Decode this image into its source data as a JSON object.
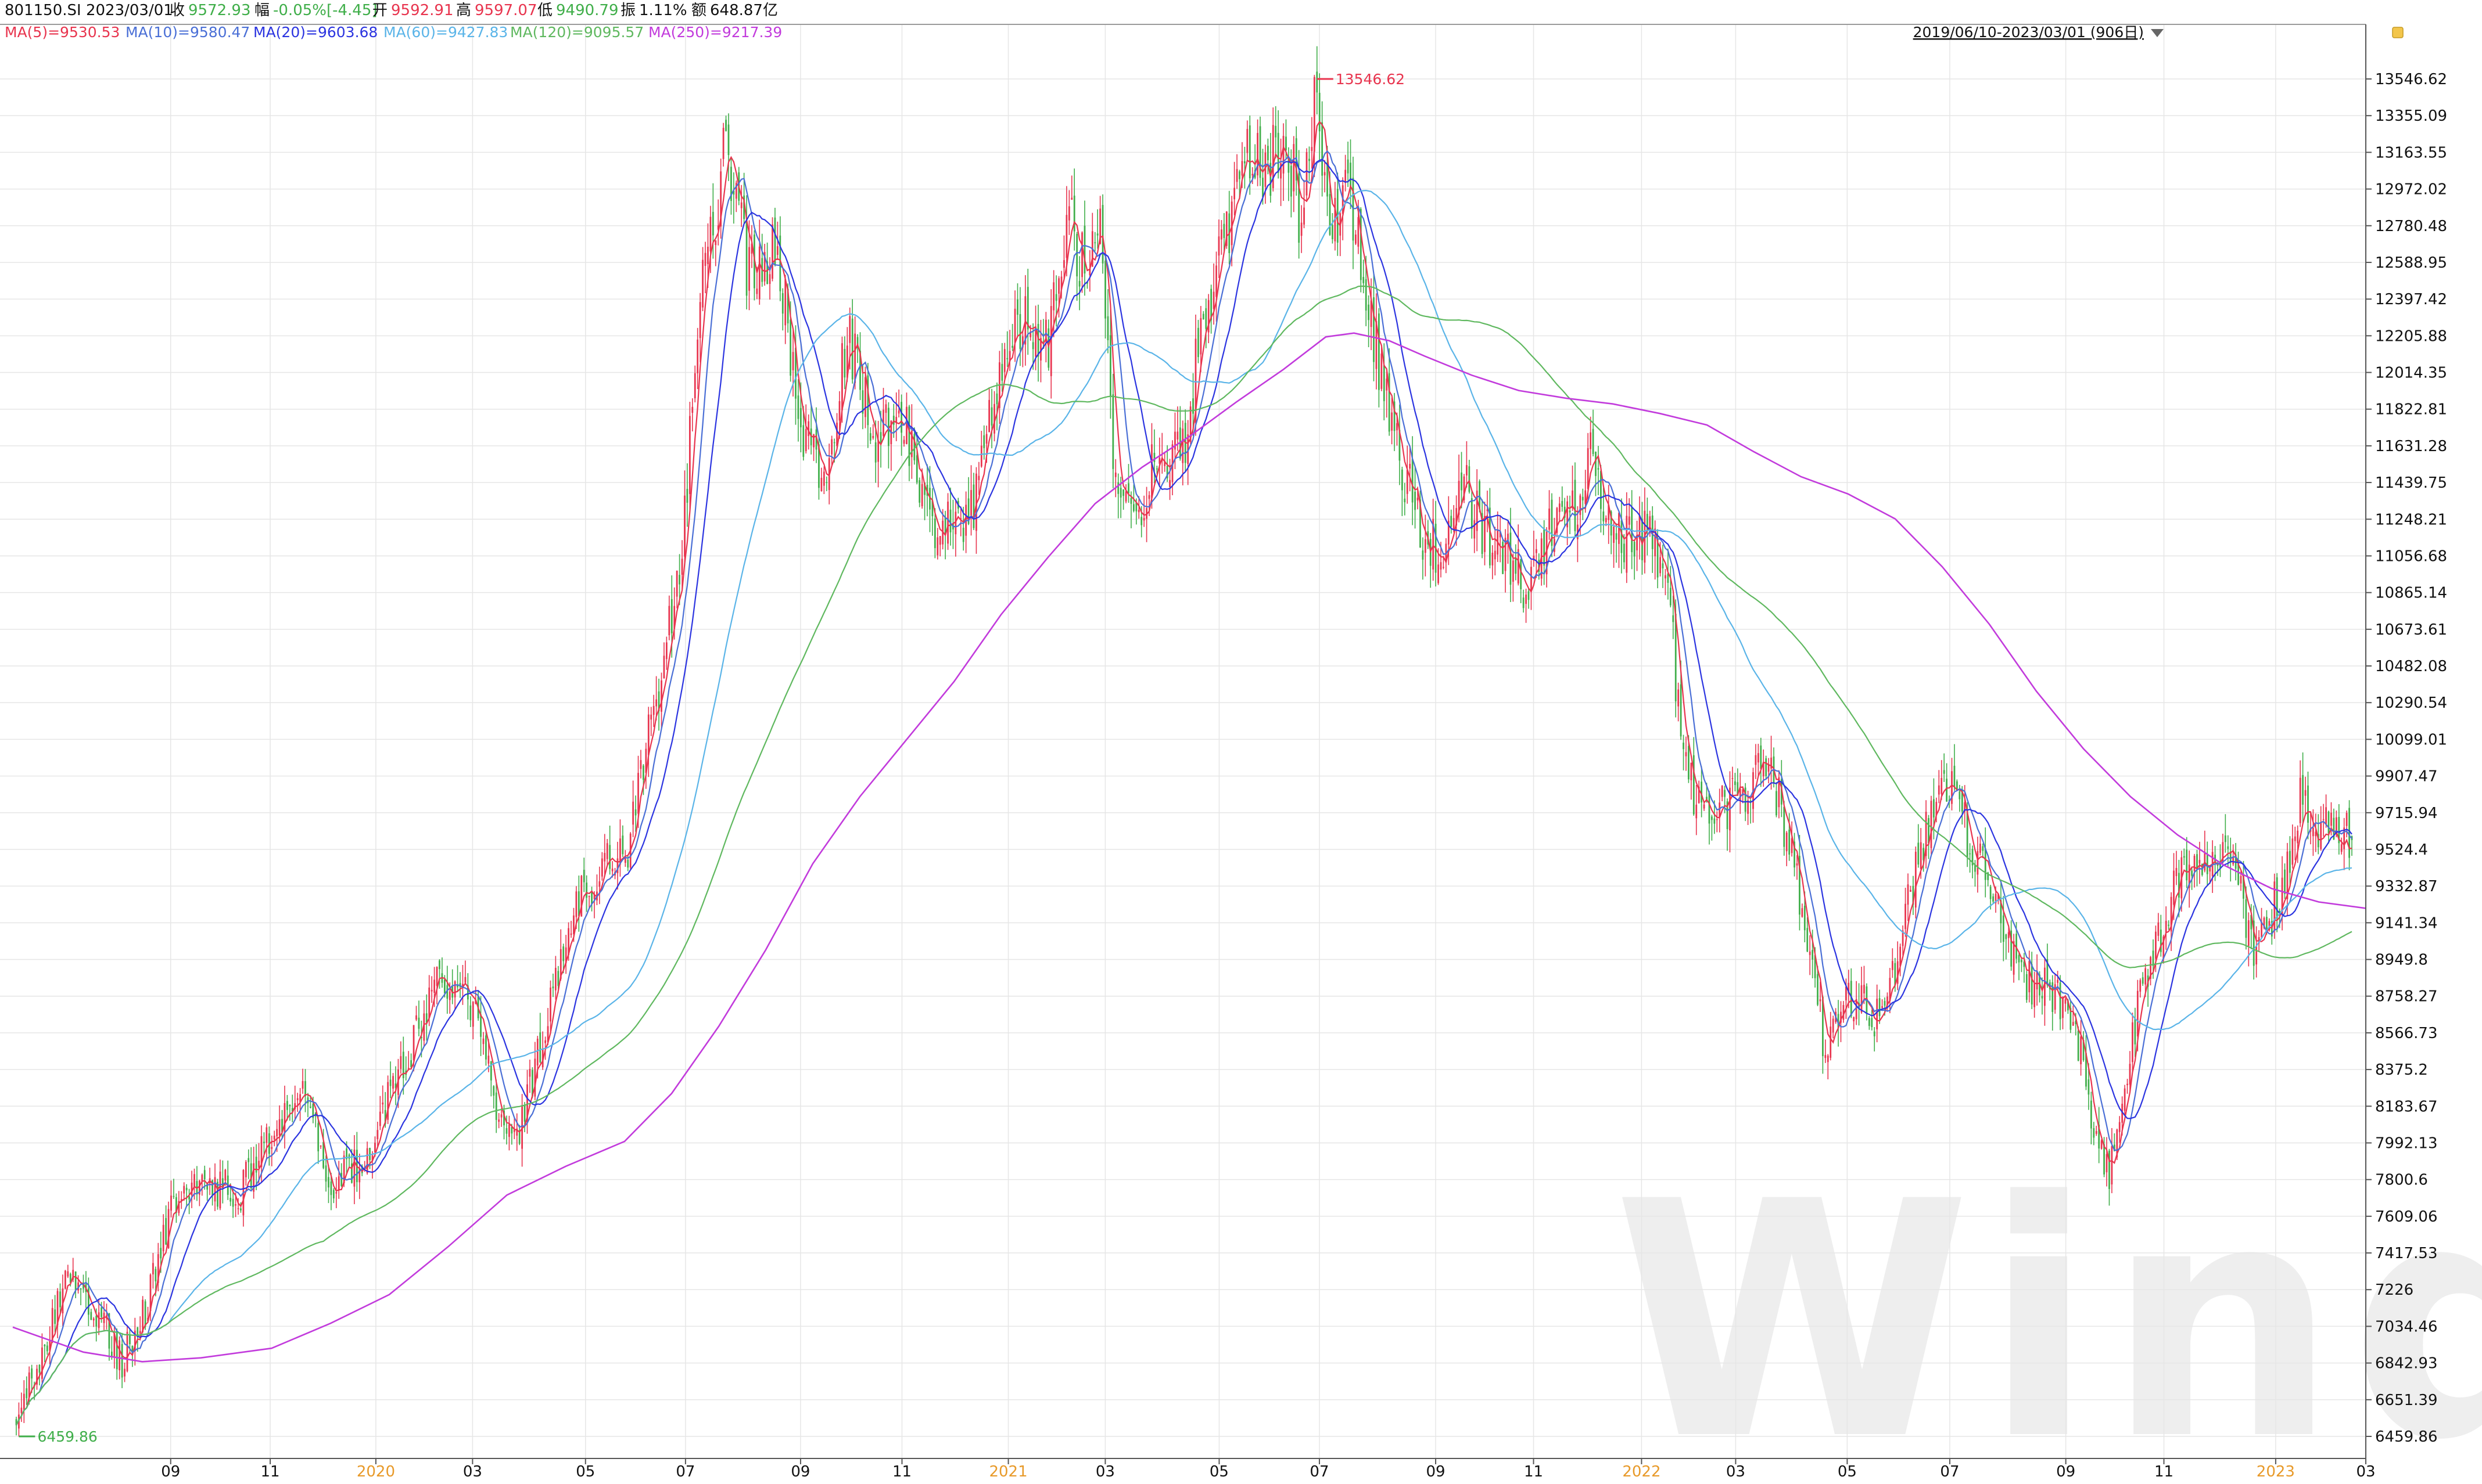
{
  "header": {
    "code_date": "801150.SI 2023/03/01",
    "close_label": "收",
    "close_value": "9572.93",
    "change_label": "幅",
    "change_value": "-0.05%[-4.45]",
    "open_label": "开",
    "open_value": "9592.91",
    "high_label": "高",
    "high_value": "9597.07",
    "low_label": "低",
    "low_value": "9490.79",
    "amp_label": "振",
    "amp_value": "1.11%",
    "amount_label": "额",
    "amount_value": "648.87亿"
  },
  "range_label": "2019/06/10-2023/03/01 (906日)",
  "watermark": "Wind",
  "colors": {
    "up": "#e8344e",
    "down": "#3fae49",
    "ma5": "#e8344e",
    "ma10": "#4a6fd6",
    "ma20": "#2b34e0",
    "ma60": "#5ab4e8",
    "ma120": "#5fb85f",
    "ma250": "#c23bdc",
    "grid": "#e6e6e6"
  },
  "chart_data": {
    "type": "candlestick",
    "y_ticks": [
      "13546.62",
      "13355.09",
      "13163.55",
      "12972.02",
      "12780.48",
      "12588.95",
      "12397.42",
      "12205.88",
      "12014.35",
      "11822.81",
      "11631.28",
      "11439.75",
      "11248.21",
      "11056.68",
      "10865.14",
      "10673.61",
      "10482.08",
      "10290.54",
      "10099.01",
      "9907.47",
      "9715.94",
      "9524.4",
      "9332.87",
      "9141.34",
      "8949.8",
      "8758.27",
      "8566.73",
      "8375.2",
      "8183.67",
      "7992.13",
      "7800.6",
      "7609.06",
      "7417.53",
      "7226",
      "7034.46",
      "6842.93",
      "6651.39",
      "6459.86"
    ],
    "ylim": [
      6459.86,
      13546.62
    ],
    "x_ticks": [
      {
        "label": "09",
        "t": 0.0671,
        "year": false
      },
      {
        "label": "11",
        "t": 0.1094,
        "year": false
      },
      {
        "label": "2020",
        "t": 0.1543,
        "year": true
      },
      {
        "label": "03",
        "t": 0.1954,
        "year": false
      },
      {
        "label": "05",
        "t": 0.2434,
        "year": false
      },
      {
        "label": "07",
        "t": 0.2859,
        "year": false
      },
      {
        "label": "09",
        "t": 0.3348,
        "year": false
      },
      {
        "label": "11",
        "t": 0.3779,
        "year": false
      },
      {
        "label": "2021",
        "t": 0.4231,
        "year": true
      },
      {
        "label": "03",
        "t": 0.4643,
        "year": false
      },
      {
        "label": "05",
        "t": 0.5127,
        "year": false
      },
      {
        "label": "07",
        "t": 0.5553,
        "year": false
      },
      {
        "label": "09",
        "t": 0.6047,
        "year": false
      },
      {
        "label": "11",
        "t": 0.6463,
        "year": false
      },
      {
        "label": "2022",
        "t": 0.6922,
        "year": true
      },
      {
        "label": "03",
        "t": 0.7322,
        "year": false
      },
      {
        "label": "05",
        "t": 0.7796,
        "year": false
      },
      {
        "label": "07",
        "t": 0.8232,
        "year": false
      },
      {
        "label": "09",
        "t": 0.8725,
        "year": false
      },
      {
        "label": "11",
        "t": 0.9142,
        "year": false
      },
      {
        "label": "2023",
        "t": 0.9617,
        "year": true
      },
      {
        "label": "03",
        "t": 1.0,
        "year": false
      }
    ],
    "max_annotation": "13546.62",
    "min_annotation": "6459.86",
    "close_path": [
      [
        0.0,
        6560
      ],
      [
        0.012,
        6900
      ],
      [
        0.022,
        7340
      ],
      [
        0.035,
        7100
      ],
      [
        0.045,
        6850
      ],
      [
        0.055,
        7100
      ],
      [
        0.067,
        7700
      ],
      [
        0.08,
        7800
      ],
      [
        0.095,
        7720
      ],
      [
        0.11,
        8080
      ],
      [
        0.125,
        8250
      ],
      [
        0.135,
        7790
      ],
      [
        0.148,
        7870
      ],
      [
        0.16,
        8250
      ],
      [
        0.172,
        8560
      ],
      [
        0.182,
        8900
      ],
      [
        0.195,
        8720
      ],
      [
        0.205,
        8200
      ],
      [
        0.214,
        8000
      ],
      [
        0.225,
        8500
      ],
      [
        0.237,
        9200
      ],
      [
        0.25,
        9400
      ],
      [
        0.262,
        9550
      ],
      [
        0.274,
        10300
      ],
      [
        0.285,
        11100
      ],
      [
        0.294,
        12500
      ],
      [
        0.304,
        13200
      ],
      [
        0.314,
        12500
      ],
      [
        0.326,
        12700
      ],
      [
        0.336,
        11700
      ],
      [
        0.346,
        11500
      ],
      [
        0.356,
        12200
      ],
      [
        0.368,
        11700
      ],
      [
        0.378,
        11850
      ],
      [
        0.389,
        11300
      ],
      [
        0.398,
        11200
      ],
      [
        0.41,
        11300
      ],
      [
        0.42,
        12000
      ],
      [
        0.431,
        12300
      ],
      [
        0.442,
        12200
      ],
      [
        0.45,
        12900
      ],
      [
        0.458,
        12500
      ],
      [
        0.464,
        12800
      ],
      [
        0.47,
        11500
      ],
      [
        0.478,
        11250
      ],
      [
        0.488,
        11550
      ],
      [
        0.5,
        11650
      ],
      [
        0.51,
        12400
      ],
      [
        0.518,
        12700
      ],
      [
        0.526,
        13200
      ],
      [
        0.534,
        13050
      ],
      [
        0.544,
        13250
      ],
      [
        0.55,
        12800
      ],
      [
        0.556,
        13400
      ],
      [
        0.562,
        12700
      ],
      [
        0.57,
        13000
      ],
      [
        0.578,
        12500
      ],
      [
        0.584,
        12000
      ],
      [
        0.594,
        11500
      ],
      [
        0.604,
        11100
      ],
      [
        0.612,
        11100
      ],
      [
        0.62,
        11400
      ],
      [
        0.63,
        11150
      ],
      [
        0.64,
        11000
      ],
      [
        0.648,
        10850
      ],
      [
        0.656,
        11250
      ],
      [
        0.666,
        11300
      ],
      [
        0.674,
        11550
      ],
      [
        0.684,
        11150
      ],
      [
        0.692,
        11200
      ],
      [
        0.7,
        11150
      ],
      [
        0.706,
        11000
      ],
      [
        0.714,
        10000
      ],
      [
        0.722,
        9700
      ],
      [
        0.732,
        9750
      ],
      [
        0.74,
        9850
      ],
      [
        0.75,
        10000
      ],
      [
        0.758,
        9600
      ],
      [
        0.766,
        9100
      ],
      [
        0.774,
        8500
      ],
      [
        0.782,
        8700
      ],
      [
        0.79,
        8800
      ],
      [
        0.798,
        8600
      ],
      [
        0.806,
        9000
      ],
      [
        0.814,
        9450
      ],
      [
        0.824,
        9950
      ],
      [
        0.832,
        9700
      ],
      [
        0.84,
        9500
      ],
      [
        0.848,
        9200
      ],
      [
        0.856,
        8900
      ],
      [
        0.866,
        8800
      ],
      [
        0.874,
        8750
      ],
      [
        0.882,
        8600
      ],
      [
        0.89,
        8050
      ],
      [
        0.896,
        7850
      ],
      [
        0.904,
        8400
      ],
      [
        0.912,
        8900
      ],
      [
        0.92,
        9100
      ],
      [
        0.928,
        9500
      ],
      [
        0.936,
        9400
      ],
      [
        0.944,
        9500
      ],
      [
        0.952,
        9300
      ],
      [
        0.958,
        8950
      ],
      [
        0.966,
        9200
      ],
      [
        0.972,
        9400
      ],
      [
        0.978,
        9800
      ],
      [
        0.986,
        9600
      ],
      [
        0.994,
        9700
      ],
      [
        1.0,
        9573
      ]
    ],
    "series": [
      {
        "name": "MA(5)",
        "value": "9530.53"
      },
      {
        "name": "MA(10)",
        "value": "9580.47"
      },
      {
        "name": "MA(20)",
        "value": "9603.68"
      },
      {
        "name": "MA(60)",
        "value": "9427.83"
      },
      {
        "name": "MA(120)",
        "value": "9095.57"
      },
      {
        "name": "MA(250)",
        "value": "9217.39",
        "points": [
          [
            0.0,
            7030
          ],
          [
            0.03,
            6900
          ],
          [
            0.055,
            6850
          ],
          [
            0.08,
            6870
          ],
          [
            0.11,
            6920
          ],
          [
            0.135,
            7050
          ],
          [
            0.16,
            7200
          ],
          [
            0.185,
            7450
          ],
          [
            0.21,
            7720
          ],
          [
            0.235,
            7870
          ],
          [
            0.26,
            8000
          ],
          [
            0.28,
            8250
          ],
          [
            0.3,
            8600
          ],
          [
            0.32,
            9000
          ],
          [
            0.34,
            9450
          ],
          [
            0.36,
            9800
          ],
          [
            0.38,
            10100
          ],
          [
            0.4,
            10400
          ],
          [
            0.42,
            10750
          ],
          [
            0.44,
            11050
          ],
          [
            0.46,
            11330
          ],
          [
            0.48,
            11520
          ],
          [
            0.5,
            11680
          ],
          [
            0.52,
            11860
          ],
          [
            0.54,
            12030
          ],
          [
            0.558,
            12200
          ],
          [
            0.57,
            12220
          ],
          [
            0.585,
            12180
          ],
          [
            0.6,
            12100
          ],
          [
            0.62,
            12000
          ],
          [
            0.64,
            11920
          ],
          [
            0.66,
            11880
          ],
          [
            0.68,
            11850
          ],
          [
            0.7,
            11800
          ],
          [
            0.72,
            11740
          ],
          [
            0.74,
            11600
          ],
          [
            0.76,
            11470
          ],
          [
            0.78,
            11380
          ],
          [
            0.8,
            11250
          ],
          [
            0.82,
            11000
          ],
          [
            0.84,
            10700
          ],
          [
            0.86,
            10350
          ],
          [
            0.88,
            10050
          ],
          [
            0.9,
            9800
          ],
          [
            0.92,
            9600
          ],
          [
            0.94,
            9440
          ],
          [
            0.96,
            9320
          ],
          [
            0.98,
            9250
          ],
          [
            1.0,
            9217
          ]
        ]
      }
    ]
  }
}
